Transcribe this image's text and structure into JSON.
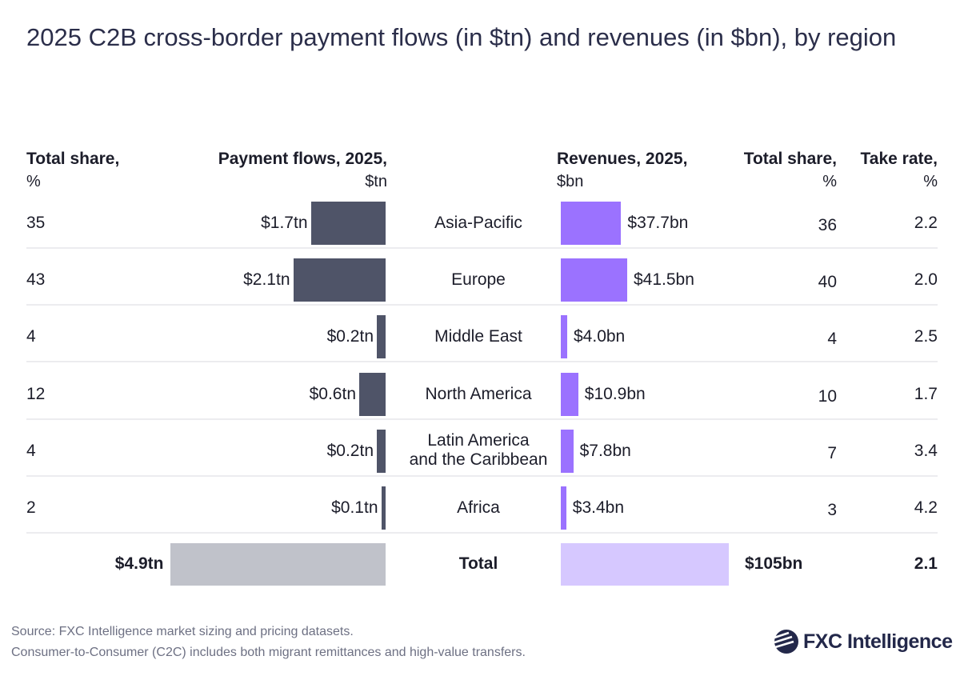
{
  "title": "2025 C2B cross-border payment flows (in $tn) and revenues (in $bn), by region",
  "headers": {
    "total_share_left": "Total share,",
    "total_share_left_unit": "%",
    "payment_flows": "Payment flows, 2025,",
    "payment_flows_unit": "$tn",
    "revenues": "Revenues, 2025,",
    "revenues_unit": "$bn",
    "total_share_right": "Total share,",
    "total_share_right_unit": "%",
    "take_rate": "Take rate,",
    "take_rate_unit": "%"
  },
  "colors": {
    "flows": "#4f5468",
    "revenues": "#9b72ff",
    "flows_total": "#c0c2ca",
    "revenues_total": "#d6c8ff"
  },
  "chart_data": {
    "type": "table",
    "rows": [
      {
        "region": "Asia-Pacific",
        "flow_share": "35",
        "flows": 1.7,
        "flows_label": "$1.7tn",
        "revenues": 37.7,
        "revenues_label": "$37.7bn",
        "revenue_share": "36",
        "take_rate": "2.2"
      },
      {
        "region": "Europe",
        "flow_share": "43",
        "flows": 2.1,
        "flows_label": "$2.1tn",
        "revenues": 41.5,
        "revenues_label": "$41.5bn",
        "revenue_share": "40",
        "take_rate": "2.0"
      },
      {
        "region": "Middle East",
        "flow_share": "4",
        "flows": 0.2,
        "flows_label": "$0.2tn",
        "revenues": 4.0,
        "revenues_label": "$4.0bn",
        "revenue_share": "4",
        "take_rate": "2.5"
      },
      {
        "region": "North America",
        "flow_share": "12",
        "flows": 0.6,
        "flows_label": "$0.6tn",
        "revenues": 10.9,
        "revenues_label": "$10.9bn",
        "revenue_share": "10",
        "take_rate": "1.7"
      },
      {
        "region": "Latin America and the Caribbean",
        "region_line1": "Latin America",
        "region_line2": "and the Caribbean",
        "flow_share": "4",
        "flows": 0.2,
        "flows_label": "$0.2tn",
        "revenues": 7.8,
        "revenues_label": "$7.8bn",
        "revenue_share": "7",
        "take_rate": "3.4"
      },
      {
        "region": "Africa",
        "flow_share": "2",
        "flows": 0.1,
        "flows_label": "$0.1tn",
        "revenues": 3.4,
        "revenues_label": "$3.4bn",
        "revenue_share": "3",
        "take_rate": "4.2"
      }
    ],
    "total": {
      "region": "Total",
      "flows": 4.9,
      "flows_label": "$4.9tn",
      "revenues": 105,
      "revenues_label": "$105bn",
      "take_rate": "2.1"
    }
  },
  "footer": {
    "source": "Source: FXC Intelligence market sizing and pricing datasets.",
    "note": "Consumer-to-Consumer (C2C) includes both migrant remittances and high-value transfers.",
    "logo_text": "FXC Intelligence"
  }
}
